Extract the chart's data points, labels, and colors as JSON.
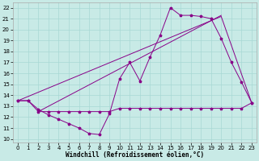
{
  "xlabel": "Windchill (Refroidissement éolien,°C)",
  "bg_color": "#c8eae6",
  "grid_color": "#a8d8d4",
  "line_color": "#880088",
  "xlim": [
    -0.5,
    23.5
  ],
  "ylim": [
    9.7,
    22.5
  ],
  "xticks": [
    0,
    1,
    2,
    3,
    4,
    5,
    6,
    7,
    8,
    9,
    10,
    11,
    12,
    13,
    14,
    15,
    16,
    17,
    18,
    19,
    20,
    21,
    22,
    23
  ],
  "yticks": [
    10,
    11,
    12,
    13,
    14,
    15,
    16,
    17,
    18,
    19,
    20,
    21,
    22
  ],
  "line1_x": [
    0,
    1,
    2,
    3,
    4,
    5,
    6,
    7,
    8,
    9,
    10,
    11,
    12,
    13,
    14,
    15,
    16,
    17,
    18,
    19,
    20,
    21,
    22,
    23
  ],
  "line1_y": [
    13.5,
    13.5,
    12.7,
    12.2,
    11.8,
    11.4,
    11.0,
    10.5,
    10.4,
    12.3,
    15.5,
    17.0,
    15.3,
    17.5,
    19.5,
    22.0,
    21.3,
    21.3,
    21.2,
    21.0,
    19.2,
    17.0,
    15.2,
    13.3
  ],
  "line2_x": [
    0,
    1,
    2,
    3,
    4,
    5,
    6,
    7,
    8,
    9,
    10,
    11,
    12,
    13,
    14,
    15,
    16,
    17,
    18,
    19,
    20,
    21,
    22,
    23
  ],
  "line2_y": [
    13.5,
    13.5,
    12.5,
    12.5,
    12.5,
    12.5,
    12.5,
    12.5,
    12.5,
    12.5,
    12.8,
    12.8,
    12.8,
    12.8,
    12.8,
    12.8,
    12.8,
    12.8,
    12.8,
    12.8,
    12.8,
    12.8,
    12.8,
    13.3
  ],
  "line3_x": [
    0,
    20,
    23
  ],
  "line3_y": [
    13.5,
    21.2,
    13.3
  ],
  "line4_x": [
    2,
    20
  ],
  "line4_y": [
    12.5,
    21.3
  ],
  "tick_fontsize": 5,
  "xlabel_fontsize": 5.5
}
